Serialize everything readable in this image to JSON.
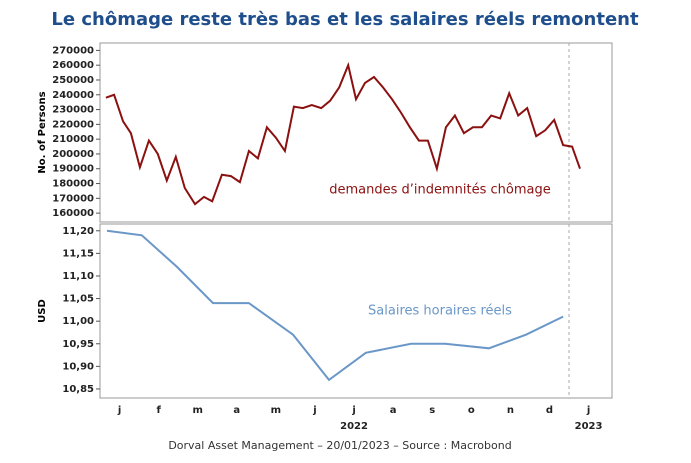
{
  "title": "Le chômage reste très bas et les salaires réels remontent",
  "footer": "Dorval Asset Management – 20/01/2023 –   Source : Macrobond",
  "chart_data": [
    {
      "type": "line",
      "ylabel": "No. of Persons",
      "annotation": "demandes d’indemnités chômage",
      "xlim": [
        0,
        13.1
      ],
      "ylim": [
        154000,
        275000
      ],
      "vline": 12,
      "yticks": [
        160000,
        170000,
        180000,
        190000,
        200000,
        210000,
        220000,
        230000,
        240000,
        250000,
        260000,
        270000
      ],
      "series": [
        {
          "color": "#8b1010",
          "x": [
            0.15,
            0.36,
            0.59,
            0.79,
            1.02,
            1.25,
            1.48,
            1.71,
            1.94,
            2.17,
            2.43,
            2.66,
            2.87,
            3.12,
            3.35,
            3.58,
            3.81,
            4.04,
            4.27,
            4.5,
            4.73,
            4.96,
            5.19,
            5.42,
            5.66,
            5.89,
            6.12,
            6.35,
            6.55,
            6.78,
            7.01,
            7.24,
            7.47,
            7.7,
            7.93,
            8.16,
            8.39,
            8.62,
            8.85,
            9.08,
            9.31,
            9.54,
            9.77,
            10.01,
            10.24,
            10.47,
            10.7,
            10.93,
            11.16,
            11.39,
            11.62,
            11.85,
            12.08,
            12.28
          ],
          "values": [
            238000,
            240000,
            222000,
            214000,
            191000,
            209000,
            200000,
            182000,
            198000,
            177000,
            166000,
            171000,
            168000,
            186000,
            185000,
            181000,
            202000,
            197000,
            218000,
            211000,
            202000,
            232000,
            231000,
            233000,
            231000,
            236000,
            245000,
            260000,
            237000,
            248000,
            252000,
            245000,
            237000,
            228000,
            218000,
            209000,
            209000,
            190000,
            218000,
            226000,
            214000,
            218000,
            218000,
            226000,
            224000,
            241000,
            226000,
            231000,
            212000,
            216000,
            223000,
            206000,
            205000,
            190000
          ]
        }
      ]
    },
    {
      "type": "line",
      "ylabel": "USD",
      "annotation": "Salaires horaires réels",
      "xlim": [
        0,
        13.1
      ],
      "ylim": [
        10.83,
        11.215
      ],
      "vline": 12,
      "yticks": [
        {
          "value": 10.85,
          "label": "10,85"
        },
        {
          "value": 10.9,
          "label": "10,90"
        },
        {
          "value": 10.95,
          "label": "10,95"
        },
        {
          "value": 11.0,
          "label": "11,00"
        },
        {
          "value": 11.05,
          "label": "11,05"
        },
        {
          "value": 11.1,
          "label": "11,10"
        },
        {
          "value": 11.15,
          "label": "11,15"
        },
        {
          "value": 11.2,
          "label": "11,20"
        }
      ],
      "xticks": [
        {
          "value": 0.5,
          "label": "j"
        },
        {
          "value": 1.5,
          "label": "f"
        },
        {
          "value": 2.5,
          "label": "m"
        },
        {
          "value": 3.5,
          "label": "a"
        },
        {
          "value": 4.5,
          "label": "m"
        },
        {
          "value": 5.5,
          "label": "j"
        },
        {
          "value": 6.5,
          "label": "j"
        },
        {
          "value": 7.5,
          "label": "a"
        },
        {
          "value": 8.5,
          "label": "s"
        },
        {
          "value": 9.5,
          "label": "o"
        },
        {
          "value": 10.5,
          "label": "n"
        },
        {
          "value": 11.5,
          "label": "d"
        },
        {
          "value": 12.5,
          "label": "j"
        }
      ],
      "year_ticks": [
        {
          "value": 6.5,
          "label": "2022"
        },
        {
          "value": 12.5,
          "label": "2023"
        }
      ],
      "series": [
        {
          "color": "#6a97c8",
          "x": [
            0.18,
            1.07,
            1.97,
            2.89,
            3.81,
            4.94,
            5.86,
            6.8,
            7.96,
            8.83,
            9.95,
            10.9,
            11.85
          ],
          "values": [
            11.2,
            11.19,
            11.12,
            11.04,
            11.04,
            10.97,
            10.87,
            10.93,
            10.95,
            10.95,
            10.94,
            10.97,
            11.01
          ]
        }
      ]
    }
  ]
}
